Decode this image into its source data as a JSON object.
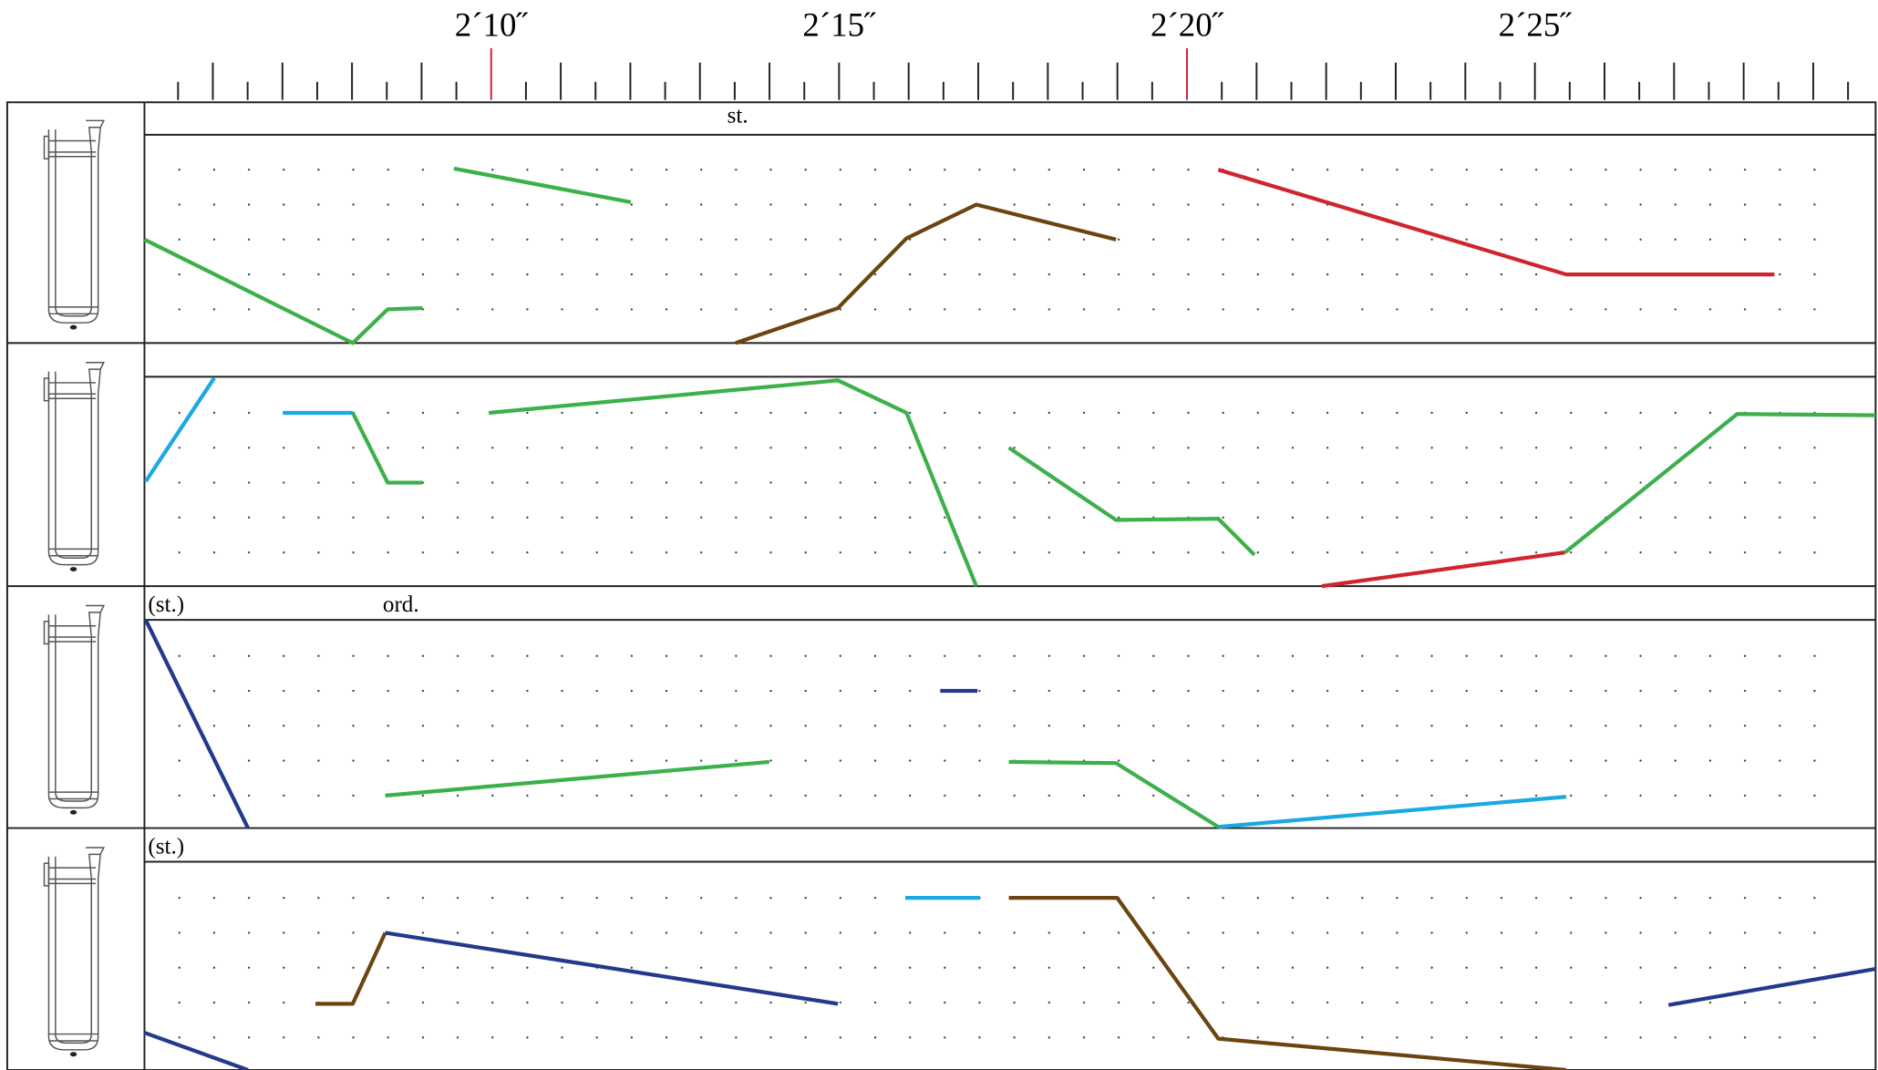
{
  "timeline": {
    "labels": [
      "2´10˝",
      "2´15˝",
      "2´20˝",
      "2´25˝"
    ]
  },
  "staves": [
    {
      "markings": [
        "st."
      ]
    },
    {
      "markings": []
    },
    {
      "markings": [
        "(st.)",
        "ord."
      ]
    },
    {
      "markings": [
        "(st.)"
      ]
    }
  ]
}
